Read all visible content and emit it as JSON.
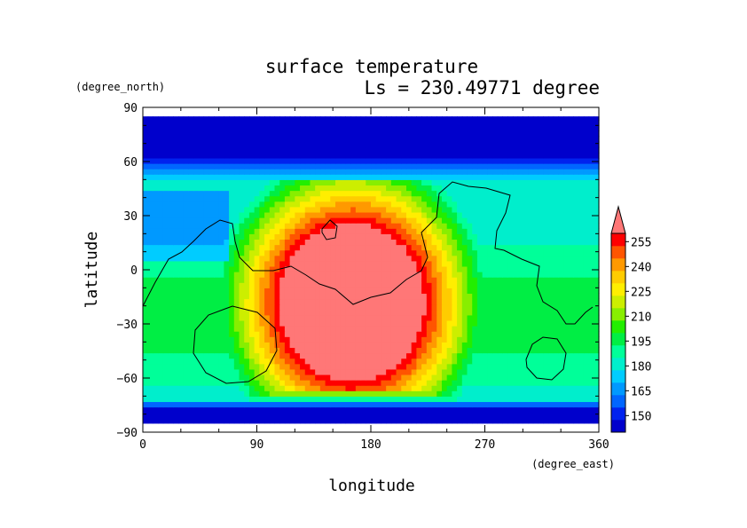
{
  "chart_data": {
    "type": "heatmap",
    "title": "surface temperature",
    "subtitle": "Ls = 230.49771 degree",
    "xlabel": "longitude",
    "ylabel": "latitude",
    "x_unit": "(degree_east)",
    "y_unit": "(degree_north)",
    "xlim": [
      0,
      360
    ],
    "ylim": [
      -90,
      90
    ],
    "x_ticks": [
      0,
      90,
      180,
      270,
      360
    ],
    "y_ticks": [
      90,
      60,
      30,
      0,
      -30,
      -60,
      -90
    ],
    "x_tick_labels": [
      "0",
      "90",
      "180",
      "270",
      "360"
    ],
    "y_tick_labels": [
      "90",
      "60",
      "30",
      "0",
      "−30",
      "−60",
      "−90"
    ],
    "colorbar": {
      "label_ticks": [
        150,
        165,
        180,
        195,
        210,
        225,
        240,
        255
      ],
      "label_tick_text": [
        "150",
        "165",
        "180",
        "195",
        "210",
        "225",
        "240",
        "255"
      ],
      "levels_from": 140,
      "levels_to": 260,
      "level_step": 7.5,
      "extend": "max",
      "colors": [
        "#0000cc",
        "#0022ee",
        "#0066ff",
        "#0099ff",
        "#00ccff",
        "#00eecc",
        "#00ff99",
        "#00ee44",
        "#22ee00",
        "#88ee00",
        "#ccee00",
        "#ffee00",
        "#ffcc00",
        "#ff9900",
        "#ff5500",
        "#ff0000",
        "#ff7777"
      ]
    },
    "data_lat_range": [
      -85,
      85
    ],
    "field_description_samples": [
      {
        "lon": 165,
        "lat": -20,
        "value": 262
      },
      {
        "lon": 165,
        "lat": 75,
        "value": 145
      },
      {
        "lon": 165,
        "lat": -80,
        "value": 145
      },
      {
        "lon": 320,
        "lat": -30,
        "value": 203
      },
      {
        "lon": 20,
        "lat": -50,
        "value": 205
      },
      {
        "lon": 25,
        "lat": 25,
        "value": 160
      }
    ]
  }
}
